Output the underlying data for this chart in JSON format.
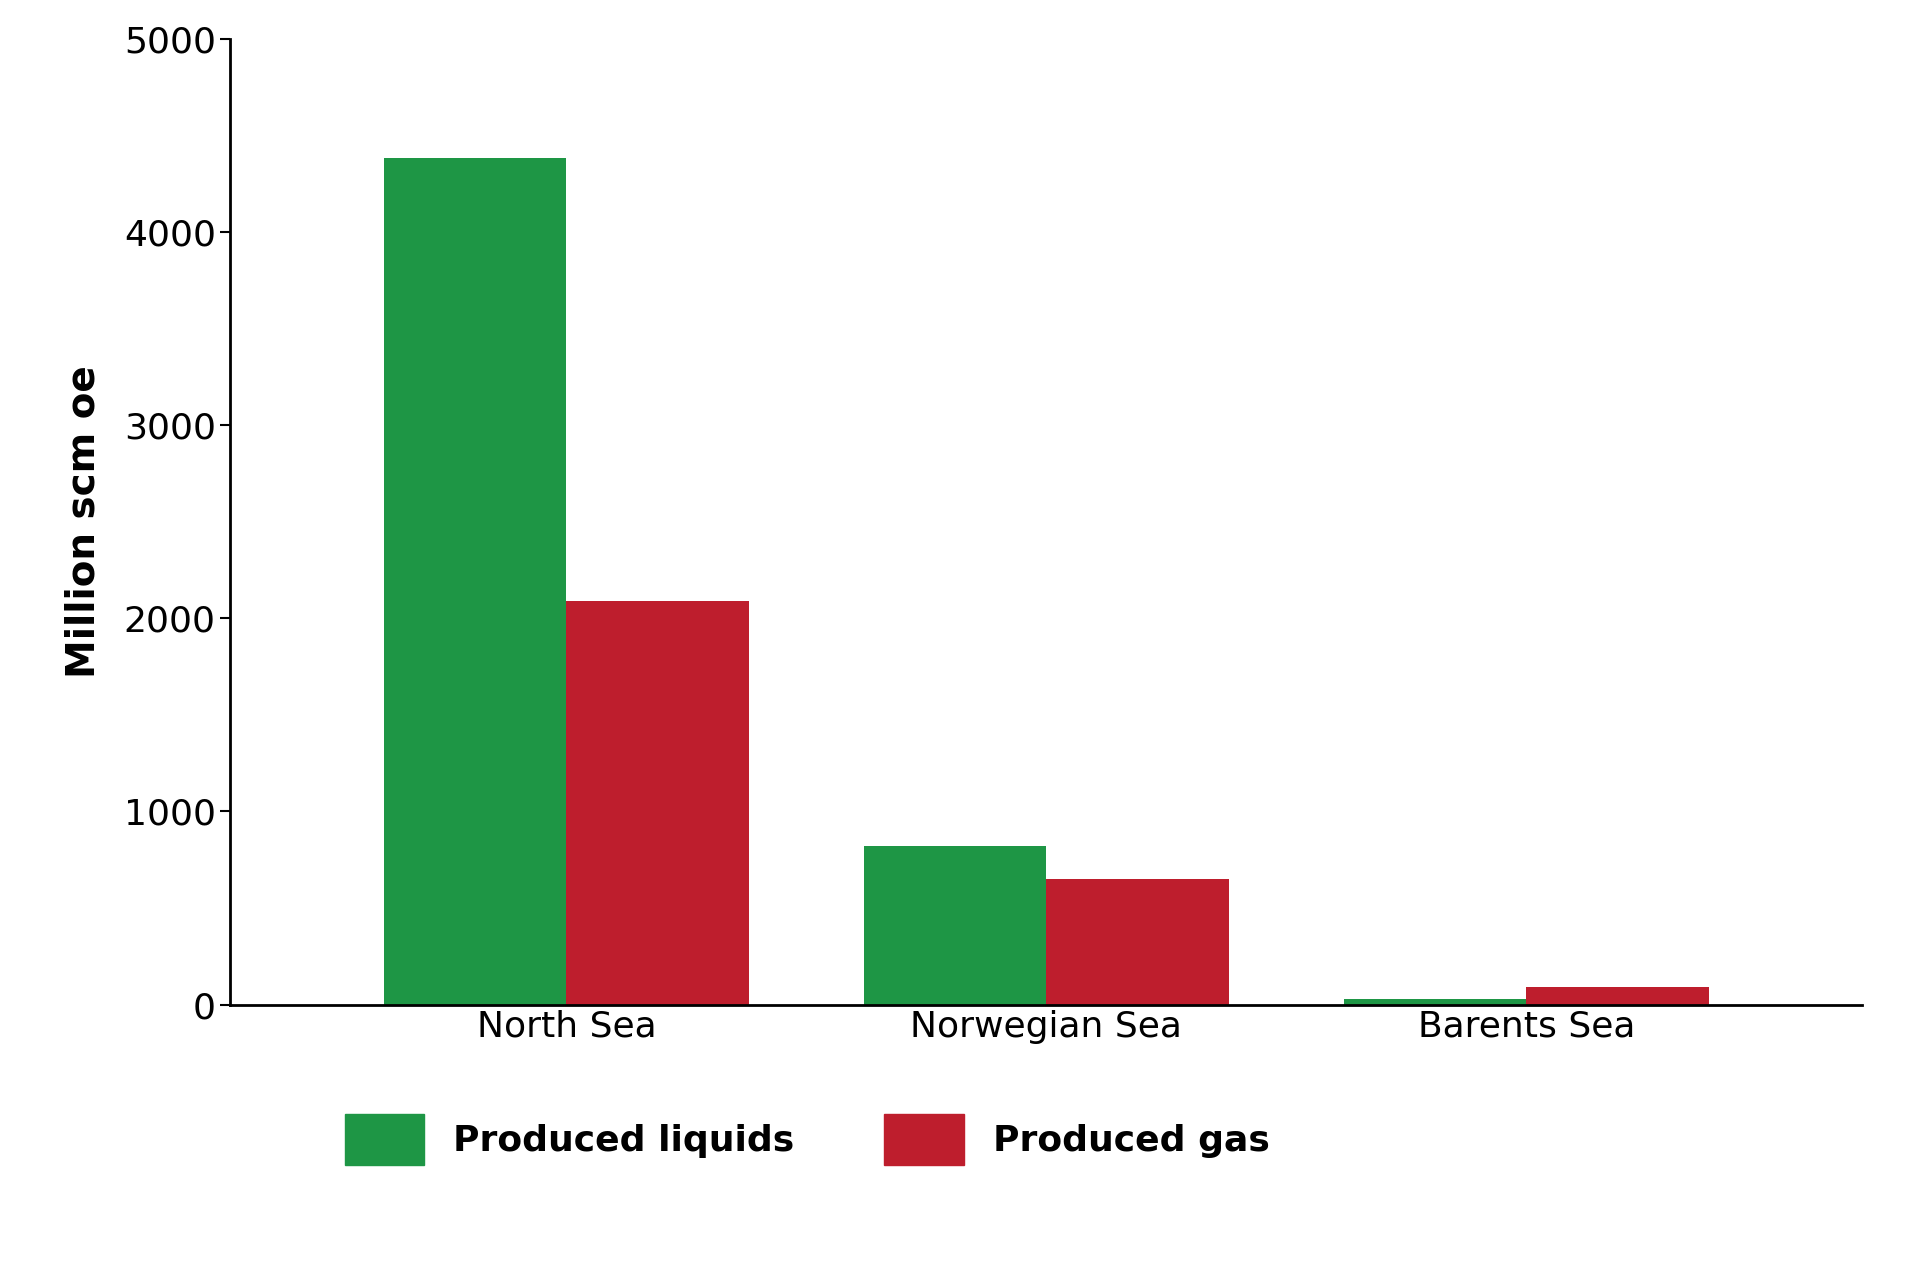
{
  "categories": [
    "North Sea",
    "Norwegian Sea",
    "Barents Sea"
  ],
  "produced_liquids": [
    4380,
    820,
    30
  ],
  "produced_gas": [
    2090,
    650,
    90
  ],
  "liquids_color": "#1e9645",
  "gas_color": "#be1e2d",
  "ylabel": "Million scm oe",
  "ylim": [
    0,
    5000
  ],
  "yticks": [
    0,
    1000,
    2000,
    3000,
    4000,
    5000
  ],
  "legend_labels": [
    "Produced liquids",
    "Produced gas"
  ],
  "bar_width": 0.38,
  "background_color": "#ffffff",
  "tick_fontsize": 26,
  "ylabel_fontsize": 28,
  "legend_fontsize": 26,
  "xlabel_fontsize": 26
}
